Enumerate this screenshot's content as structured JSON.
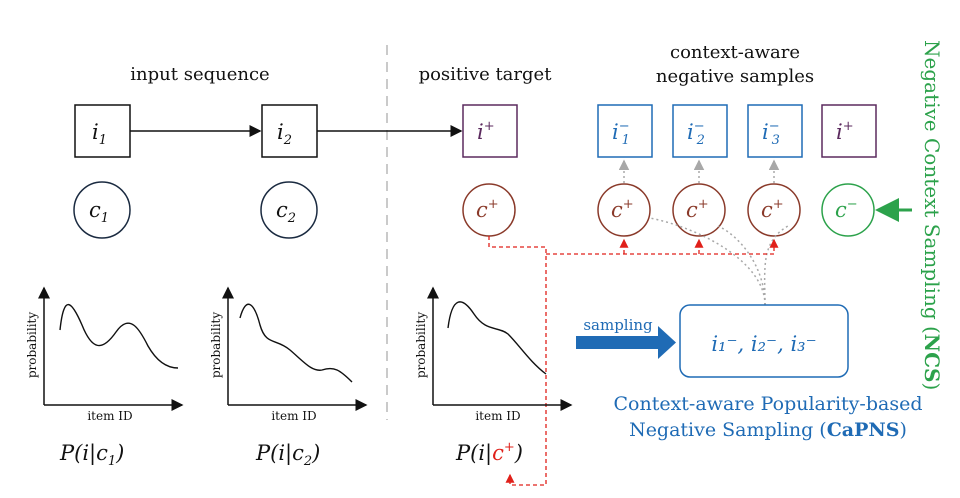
{
  "headings": {
    "input_sequence": "input sequence",
    "positive_target": "positive target",
    "negative_samples_line1": "context-aware",
    "negative_samples_line2": "negative samples"
  },
  "items": {
    "i1": "i",
    "i1_sub": "1",
    "i2": "i",
    "i2_sub": "2",
    "target": "i",
    "target_sup": "+",
    "neg1": "i",
    "neg1_sub": "1",
    "neg1_sup": "−",
    "neg2": "i",
    "neg2_sub": "2",
    "neg2_sup": "−",
    "neg3": "i",
    "neg3_sub": "3",
    "neg3_sup": "−",
    "pos_context_item": "i",
    "pos_context_item_sup": "+"
  },
  "contexts": {
    "c1": "c",
    "c1_sub": "1",
    "c2": "c",
    "c2_sub": "2",
    "c_plus": "c",
    "c_plus_sup": "+",
    "c_minus": "c",
    "c_minus_sup": "−"
  },
  "plots": {
    "ylabel": "probability",
    "xlabel": "item ID"
  },
  "formulas": {
    "p1_prefix": "P(i|c",
    "p1_sub": "1",
    "p1_suffix": ")",
    "p2_prefix": "P(i|c",
    "p2_sub": "2",
    "p2_suffix": ")",
    "p3_prefix": "P(i|",
    "p3_c": "c",
    "p3_sup": "+",
    "p3_suffix": ")"
  },
  "capns": {
    "sampling_label": "sampling",
    "box_text": "i₁⁻, i₂⁻, i₃⁻",
    "title_line1": "Context-aware Popularity-based",
    "title_line2_prefix": "Negative Sampling (",
    "title_line2_bold": "CaPNS",
    "title_line2_suffix": ")"
  },
  "ncs": {
    "label_prefix": "Negative Context Sampling (",
    "label_bold": "NCS",
    "label_suffix": ")"
  },
  "colors": {
    "black": "#111111",
    "purple": "#5b2a5e",
    "blue": "#1f6bb5",
    "brown": "#8a3a2a",
    "green": "#2ca24b",
    "red": "#e0201a",
    "gray": "#a8a8a8"
  }
}
